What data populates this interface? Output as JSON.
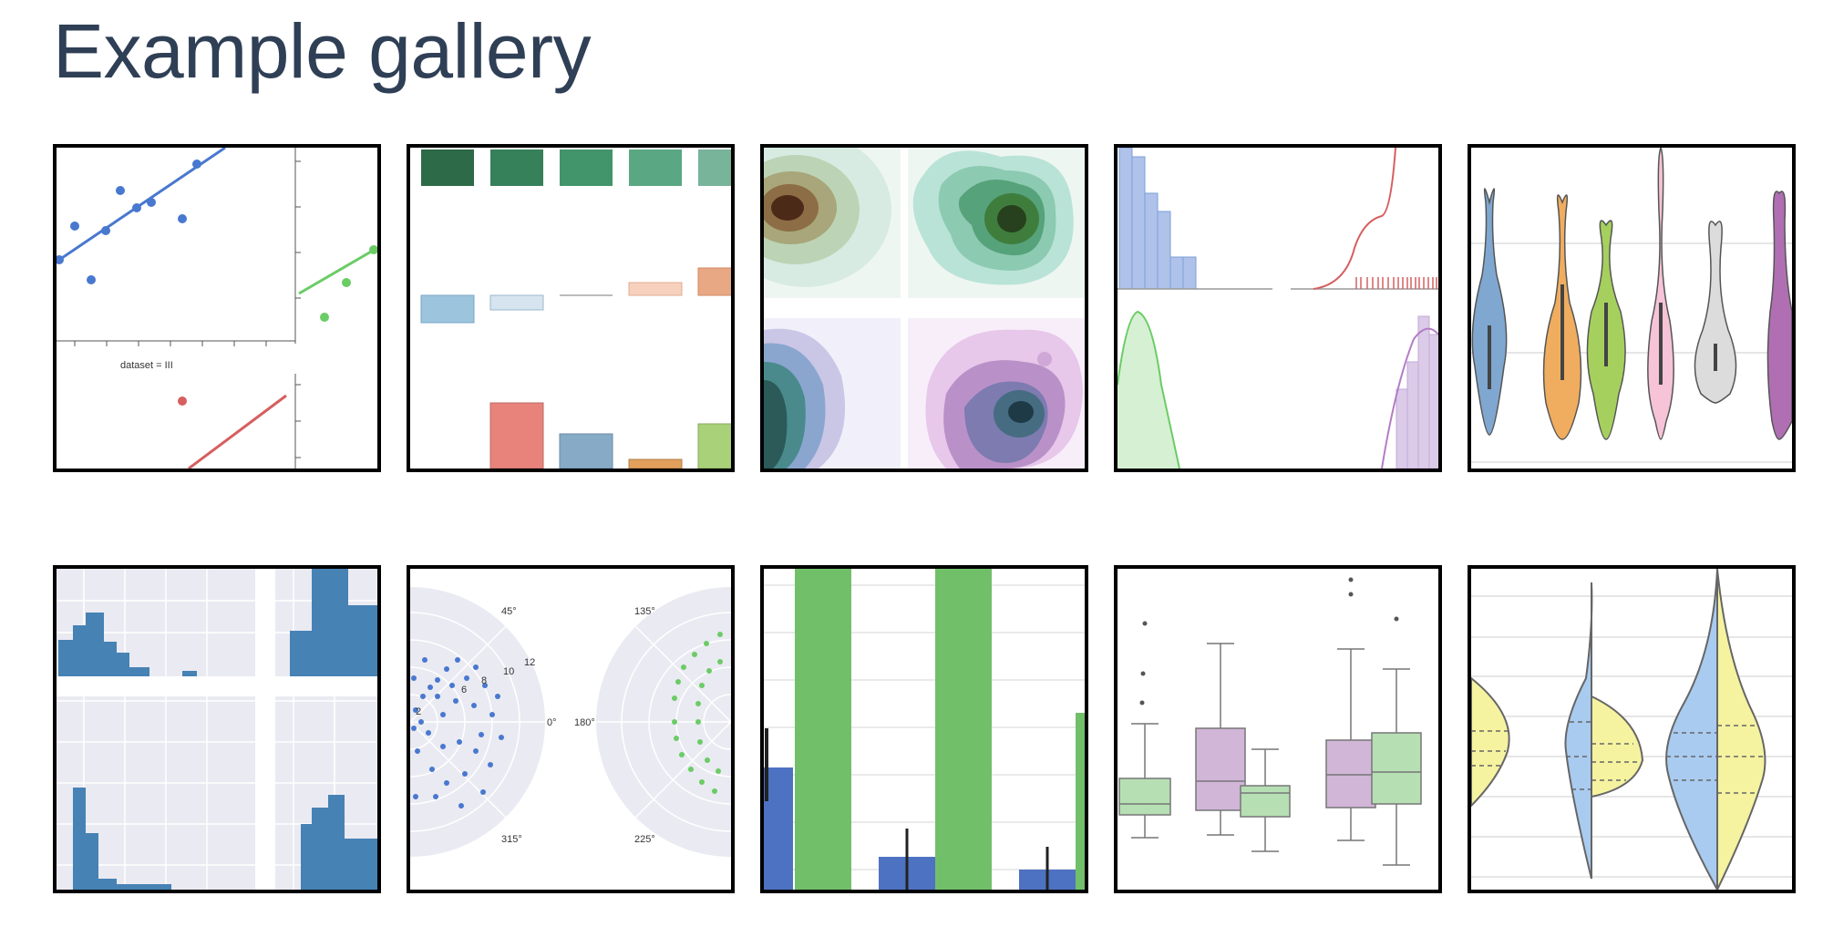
{
  "page": {
    "title": "Example gallery"
  },
  "gallery": {
    "tiles": [
      {
        "thumb": "anscombe-lmplot",
        "labels": {
          "dataset": "dataset = III"
        }
      },
      {
        "thumb": "palette-swatches",
        "labels": {}
      },
      {
        "thumb": "kde-facets",
        "labels": {}
      },
      {
        "thumb": "distplot-rugplot",
        "labels": {}
      },
      {
        "thumb": "violinplot",
        "labels": {}
      },
      {
        "thumb": "pairgrid-histograms",
        "labels": {}
      },
      {
        "thumb": "polar-facetgrid",
        "labels": {
          "a45": "45°",
          "a135": "135°",
          "a0": "0°",
          "a180": "180°",
          "a315": "315°",
          "a225": "225°",
          "r2": "2",
          "r6": "6",
          "r8": "8",
          "r10": "10",
          "r12": "12"
        }
      },
      {
        "thumb": "bar-errorbars",
        "labels": {}
      },
      {
        "thumb": "boxplot",
        "labels": {}
      },
      {
        "thumb": "split-violinplot",
        "labels": {}
      }
    ]
  },
  "colors": {
    "title": "#2f3f55",
    "border": "#000000",
    "blue": "#4878cf",
    "green": "#6acc65",
    "red": "#d65f5f",
    "purple": "#b47cc7"
  }
}
